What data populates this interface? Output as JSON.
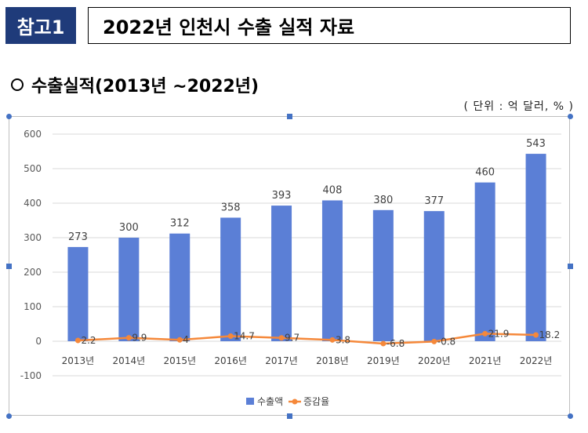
{
  "header": {
    "badge": "참고1",
    "title": "2022년 인천시 수출 실적 자료"
  },
  "section": {
    "heading": "수출실적(2013년 ~2022년)",
    "unit_note": "( 단위 : 억 달러, % )"
  },
  "colors": {
    "bar": "#5b7fd6",
    "line": "#f5883a",
    "badge_bg": "#1f3b7a",
    "grid": "#d9d9d9"
  },
  "chart_data": {
    "type": "bar",
    "categories": [
      "2013년",
      "2014년",
      "2015년",
      "2016년",
      "2017년",
      "2018년",
      "2019년",
      "2020년",
      "2021년",
      "2022년"
    ],
    "series": [
      {
        "name": "수출액",
        "type": "bar",
        "values": [
          273,
          300,
          312,
          358,
          393,
          408,
          380,
          377,
          460,
          543
        ]
      },
      {
        "name": "증감율",
        "type": "line",
        "values": [
          2.2,
          9.9,
          4,
          14.7,
          9.7,
          3.8,
          -6.8,
          -0.8,
          21.9,
          18.2
        ]
      }
    ],
    "yticks": [
      600,
      500,
      400,
      300,
      200,
      100,
      0,
      -100
    ],
    "ylim": [
      -100,
      600
    ],
    "grid": true,
    "legend": "bottom"
  }
}
